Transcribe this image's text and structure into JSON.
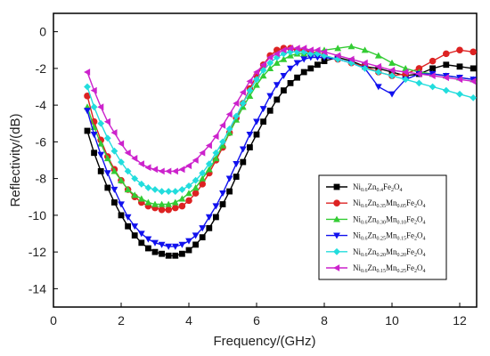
{
  "chart_data": {
    "type": "line",
    "xlabel": "Frequency/(GHz)",
    "ylabel": "Reflectivity/(dB)",
    "xlim": [
      0,
      12.5
    ],
    "ylim": [
      -15,
      1
    ],
    "xticks": [
      0,
      2,
      4,
      6,
      8,
      10,
      12
    ],
    "yticks": [
      0,
      -2,
      -4,
      -6,
      -8,
      -10,
      -12,
      -14
    ],
    "grid": false,
    "legend_position": "right",
    "series": [
      {
        "name": "Ni0.6Zn0.4Fe2O4",
        "label_parts": [
          [
            "Ni",
            ""
          ],
          [
            "0.6",
            "sub"
          ],
          [
            "Zn",
            ""
          ],
          [
            "0.4",
            "sub"
          ],
          [
            "Fe",
            ""
          ],
          [
            "2",
            "sub"
          ],
          [
            "O",
            ""
          ],
          [
            "4",
            "sub"
          ]
        ],
        "color": "#000000",
        "marker": "square",
        "x": [
          1.0,
          1.2,
          1.4,
          1.6,
          1.8,
          2.0,
          2.2,
          2.4,
          2.6,
          2.8,
          3.0,
          3.2,
          3.4,
          3.6,
          3.8,
          4.0,
          4.2,
          4.4,
          4.6,
          4.8,
          5.0,
          5.2,
          5.4,
          5.6,
          5.8,
          6.0,
          6.2,
          6.4,
          6.6,
          6.8,
          7.0,
          7.2,
          7.4,
          7.6,
          7.8,
          8.0,
          8.4,
          8.8,
          9.2,
          9.6,
          10.0,
          10.4,
          10.8,
          11.2,
          11.6,
          12.0,
          12.4
        ],
        "y": [
          -5.4,
          -6.6,
          -7.6,
          -8.5,
          -9.3,
          -10.0,
          -10.6,
          -11.1,
          -11.5,
          -11.8,
          -12.0,
          -12.1,
          -12.2,
          -12.2,
          -12.1,
          -11.9,
          -11.6,
          -11.2,
          -10.7,
          -10.1,
          -9.4,
          -8.7,
          -7.9,
          -7.1,
          -6.3,
          -5.6,
          -4.9,
          -4.3,
          -3.7,
          -3.2,
          -2.8,
          -2.5,
          -2.2,
          -2.0,
          -1.8,
          -1.6,
          -1.4,
          -1.6,
          -1.9,
          -2.0,
          -2.2,
          -2.4,
          -2.3,
          -2.0,
          -1.8,
          -1.9,
          -2.0
        ]
      },
      {
        "name": "Ni0.6Zn0.35Mn0.05Fe2O4",
        "label_parts": [
          [
            "Ni",
            ""
          ],
          [
            "0.6",
            "sub"
          ],
          [
            "Zn",
            ""
          ],
          [
            "0.35",
            "sub"
          ],
          [
            "Mn",
            ""
          ],
          [
            "0.05",
            "sub"
          ],
          [
            "Fe",
            ""
          ],
          [
            "2",
            "sub"
          ],
          [
            "O",
            ""
          ],
          [
            "4",
            "sub"
          ]
        ],
        "color": "#dd2222",
        "marker": "circle",
        "x": [
          1.0,
          1.2,
          1.4,
          1.6,
          1.8,
          2.0,
          2.2,
          2.4,
          2.6,
          2.8,
          3.0,
          3.2,
          3.4,
          3.6,
          3.8,
          4.0,
          4.2,
          4.4,
          4.6,
          4.8,
          5.0,
          5.2,
          5.4,
          5.6,
          5.8,
          6.0,
          6.2,
          6.4,
          6.6,
          6.8,
          7.0,
          7.2,
          7.4,
          7.6,
          7.8,
          8.0,
          8.4,
          8.8,
          9.2,
          9.6,
          10.0,
          10.4,
          10.8,
          11.2,
          11.6,
          12.0,
          12.4
        ],
        "y": [
          -3.5,
          -4.9,
          -5.9,
          -6.8,
          -7.5,
          -8.1,
          -8.6,
          -9.0,
          -9.3,
          -9.5,
          -9.6,
          -9.7,
          -9.7,
          -9.6,
          -9.5,
          -9.2,
          -8.8,
          -8.3,
          -7.7,
          -7.0,
          -6.3,
          -5.5,
          -4.7,
          -3.9,
          -3.1,
          -2.4,
          -1.8,
          -1.3,
          -1.0,
          -0.9,
          -0.9,
          -1.0,
          -1.0,
          -1.1,
          -1.2,
          -1.3,
          -1.5,
          -1.7,
          -1.9,
          -2.2,
          -2.4,
          -2.3,
          -2.0,
          -1.6,
          -1.2,
          -1.0,
          -1.1
        ]
      },
      {
        "name": "Ni0.6Zn0.30Mn0.10Fe2O4",
        "label_parts": [
          [
            "Ni",
            ""
          ],
          [
            "0.6",
            "sub"
          ],
          [
            "Zn",
            ""
          ],
          [
            "0.30",
            "sub"
          ],
          [
            "Mn",
            ""
          ],
          [
            "0.10",
            "sub"
          ],
          [
            "Fe",
            ""
          ],
          [
            "2",
            "sub"
          ],
          [
            "O",
            ""
          ],
          [
            "4",
            "sub"
          ]
        ],
        "color": "#33cc33",
        "marker": "triangle-up",
        "x": [
          1.0,
          1.2,
          1.4,
          1.6,
          1.8,
          2.0,
          2.2,
          2.4,
          2.6,
          2.8,
          3.0,
          3.2,
          3.4,
          3.6,
          3.8,
          4.0,
          4.2,
          4.4,
          4.6,
          4.8,
          5.0,
          5.2,
          5.4,
          5.6,
          5.8,
          6.0,
          6.2,
          6.4,
          6.6,
          6.8,
          7.0,
          7.2,
          7.4,
          7.6,
          7.8,
          8.0,
          8.4,
          8.8,
          9.2,
          9.6,
          10.0,
          10.4,
          10.8,
          11.2,
          11.6,
          12.0,
          12.4
        ],
        "y": [
          -4.1,
          -5.2,
          -6.1,
          -6.9,
          -7.6,
          -8.1,
          -8.6,
          -8.9,
          -9.1,
          -9.3,
          -9.4,
          -9.4,
          -9.4,
          -9.3,
          -9.1,
          -8.8,
          -8.5,
          -8.0,
          -7.5,
          -6.9,
          -6.2,
          -5.5,
          -4.8,
          -4.1,
          -3.5,
          -2.9,
          -2.4,
          -2.0,
          -1.7,
          -1.5,
          -1.3,
          -1.2,
          -1.2,
          -1.2,
          -1.1,
          -1.0,
          -0.9,
          -0.8,
          -1.0,
          -1.3,
          -1.7,
          -2.0,
          -2.2,
          -2.3,
          -2.4,
          -2.5,
          -2.6
        ]
      },
      {
        "name": "Ni0.6Zn0.25Mn0.15Fe2O4",
        "label_parts": [
          [
            "Ni",
            ""
          ],
          [
            "0.6",
            "sub"
          ],
          [
            "Zn",
            ""
          ],
          [
            "0.25",
            "sub"
          ],
          [
            "Mn",
            ""
          ],
          [
            "0.15",
            "sub"
          ],
          [
            "Fe",
            ""
          ],
          [
            "2",
            "sub"
          ],
          [
            "O",
            ""
          ],
          [
            "4",
            "sub"
          ]
        ],
        "color": "#1111ee",
        "marker": "triangle-down",
        "x": [
          1.0,
          1.2,
          1.4,
          1.6,
          1.8,
          2.0,
          2.2,
          2.4,
          2.6,
          2.8,
          3.0,
          3.2,
          3.4,
          3.6,
          3.8,
          4.0,
          4.2,
          4.4,
          4.6,
          4.8,
          5.0,
          5.2,
          5.4,
          5.6,
          5.8,
          6.0,
          6.2,
          6.4,
          6.6,
          6.8,
          7.0,
          7.2,
          7.4,
          7.6,
          7.8,
          8.0,
          8.4,
          8.8,
          9.2,
          9.6,
          10.0,
          10.4,
          10.8,
          11.2,
          11.6,
          12.0,
          12.4
        ],
        "y": [
          -4.3,
          -5.6,
          -6.7,
          -7.7,
          -8.6,
          -9.4,
          -10.1,
          -10.6,
          -11.0,
          -11.3,
          -11.5,
          -11.6,
          -11.7,
          -11.7,
          -11.6,
          -11.4,
          -11.1,
          -10.7,
          -10.1,
          -9.5,
          -8.8,
          -8.0,
          -7.2,
          -6.4,
          -5.6,
          -4.9,
          -4.2,
          -3.5,
          -2.9,
          -2.4,
          -2.0,
          -1.7,
          -1.5,
          -1.4,
          -1.4,
          -1.4,
          -1.5,
          -1.7,
          -2.0,
          -3.0,
          -3.4,
          -2.6,
          -2.3,
          -2.3,
          -2.4,
          -2.5,
          -2.6
        ]
      },
      {
        "name": "Ni0.6Zn0.20Mn0.20Fe2O4",
        "label_parts": [
          [
            "Ni",
            ""
          ],
          [
            "0.6",
            "sub"
          ],
          [
            "Zn",
            ""
          ],
          [
            "0.20",
            "sub"
          ],
          [
            "Mn",
            ""
          ],
          [
            "0.20",
            "sub"
          ],
          [
            "Fe",
            ""
          ],
          [
            "2",
            "sub"
          ],
          [
            "O",
            ""
          ],
          [
            "4",
            "sub"
          ]
        ],
        "color": "#22dddd",
        "marker": "diamond",
        "x": [
          1.0,
          1.2,
          1.4,
          1.6,
          1.8,
          2.0,
          2.2,
          2.4,
          2.6,
          2.8,
          3.0,
          3.2,
          3.4,
          3.6,
          3.8,
          4.0,
          4.2,
          4.4,
          4.6,
          4.8,
          5.0,
          5.2,
          5.4,
          5.6,
          5.8,
          6.0,
          6.2,
          6.4,
          6.6,
          6.8,
          7.0,
          7.2,
          7.4,
          7.6,
          7.8,
          8.0,
          8.4,
          8.8,
          9.2,
          9.6,
          10.0,
          10.4,
          10.8,
          11.2,
          11.6,
          12.0,
          12.4
        ],
        "y": [
          -3.0,
          -4.1,
          -5.0,
          -5.8,
          -6.5,
          -7.1,
          -7.6,
          -8.0,
          -8.3,
          -8.5,
          -8.6,
          -8.7,
          -8.7,
          -8.7,
          -8.6,
          -8.4,
          -8.1,
          -7.7,
          -7.2,
          -6.6,
          -6.0,
          -5.3,
          -4.6,
          -3.9,
          -3.2,
          -2.6,
          -2.1,
          -1.7,
          -1.4,
          -1.2,
          -1.1,
          -1.1,
          -1.1,
          -1.2,
          -1.2,
          -1.3,
          -1.5,
          -1.7,
          -2.0,
          -2.2,
          -2.4,
          -2.6,
          -2.8,
          -3.0,
          -3.2,
          -3.4,
          -3.6
        ]
      },
      {
        "name": "Ni0.6Zn0.15Mn0.25Fe2O4",
        "label_parts": [
          [
            "Ni",
            ""
          ],
          [
            "0.6",
            "sub"
          ],
          [
            "Zn",
            ""
          ],
          [
            "0.15",
            "sub"
          ],
          [
            "Mn",
            ""
          ],
          [
            "0.25",
            "sub"
          ],
          [
            "Fe",
            ""
          ],
          [
            "2",
            "sub"
          ],
          [
            "O",
            ""
          ],
          [
            "4",
            "sub"
          ]
        ],
        "color": "#cc22cc",
        "marker": "triangle-left",
        "x": [
          1.0,
          1.2,
          1.4,
          1.6,
          1.8,
          2.0,
          2.2,
          2.4,
          2.6,
          2.8,
          3.0,
          3.2,
          3.4,
          3.6,
          3.8,
          4.0,
          4.2,
          4.4,
          4.6,
          4.8,
          5.0,
          5.2,
          5.4,
          5.6,
          5.8,
          6.0,
          6.2,
          6.4,
          6.6,
          6.8,
          7.0,
          7.2,
          7.4,
          7.6,
          7.8,
          8.0,
          8.4,
          8.8,
          9.2,
          9.6,
          10.0,
          10.4,
          10.8,
          11.2,
          11.6,
          12.0,
          12.4
        ],
        "y": [
          -2.2,
          -3.2,
          -4.1,
          -4.9,
          -5.5,
          -6.1,
          -6.6,
          -6.9,
          -7.2,
          -7.4,
          -7.5,
          -7.6,
          -7.6,
          -7.6,
          -7.5,
          -7.3,
          -7.0,
          -6.6,
          -6.2,
          -5.7,
          -5.1,
          -4.5,
          -3.9,
          -3.3,
          -2.7,
          -2.2,
          -1.8,
          -1.4,
          -1.2,
          -1.0,
          -0.9,
          -0.9,
          -0.9,
          -1.0,
          -1.0,
          -1.1,
          -1.3,
          -1.5,
          -1.7,
          -1.9,
          -2.1,
          -2.2,
          -2.3,
          -2.4,
          -2.5,
          -2.6,
          -2.7
        ]
      }
    ]
  }
}
